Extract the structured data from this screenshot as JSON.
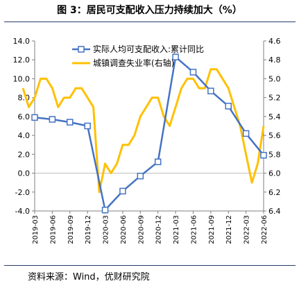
{
  "title": "图 3：居民可支配收入压力持续加大（%）",
  "source": "资料来源：Wind，优财研究院",
  "colors": {
    "income": "#4472c4",
    "unemp": "#ffc000",
    "axis": "#7f7f7f"
  },
  "chart_data": {
    "type": "line",
    "x": [
      "2019-03",
      "2019-06",
      "2019-09",
      "2019-12",
      "2020-03",
      "2020-06",
      "2020-09",
      "2020-12",
      "2021-03",
      "2021-06",
      "2021-09",
      "2021-12",
      "2022-03",
      "2022-06"
    ],
    "left_axis": {
      "ylim": [
        -4,
        14
      ],
      "ticks": [
        "-4.0",
        "-2.0",
        "0.0",
        "2.0",
        "4.0",
        "6.0",
        "8.0",
        "10.0",
        "12.0",
        "14.0"
      ]
    },
    "right_axis": {
      "ylim": [
        6.4,
        4.6
      ],
      "inverted": true,
      "ticks": [
        "4.6",
        "4.8",
        "5.0",
        "5.2",
        "5.4",
        "5.6",
        "5.8",
        "6.0",
        "6.2",
        "6.4"
      ]
    },
    "series": [
      {
        "name": "实际人均可支配收入:累计同比",
        "axis": "left",
        "marker": "square",
        "x": [
          "2019-03",
          "2019-06",
          "2019-09",
          "2019-12",
          "2020-03",
          "2020-06",
          "2020-09",
          "2020-12",
          "2021-03",
          "2021-06",
          "2021-09",
          "2021-12",
          "2022-03",
          "2022-06"
        ],
        "values": [
          5.9,
          5.7,
          5.4,
          5.0,
          -3.9,
          -1.9,
          -0.3,
          1.2,
          12.3,
          10.7,
          8.7,
          7.1,
          4.2,
          1.9
        ]
      },
      {
        "name": "城镇调查失业率(右轴)",
        "axis": "right",
        "x": [
          "2019-01",
          "2019-02",
          "2019-03",
          "2019-04",
          "2019-05",
          "2019-06",
          "2019-07",
          "2019-08",
          "2019-09",
          "2019-10",
          "2019-11",
          "2019-12",
          "2020-01",
          "2020-02",
          "2020-03",
          "2020-04",
          "2020-05",
          "2020-06",
          "2020-07",
          "2020-08",
          "2020-09",
          "2020-10",
          "2020-11",
          "2020-12",
          "2021-01",
          "2021-02",
          "2021-03",
          "2021-04",
          "2021-05",
          "2021-06",
          "2021-07",
          "2021-08",
          "2021-09",
          "2021-10",
          "2021-11",
          "2021-12",
          "2022-01",
          "2022-02",
          "2022-03",
          "2022-04",
          "2022-05",
          "2022-06"
        ],
        "values": [
          5.1,
          5.3,
          5.2,
          5.0,
          5.0,
          5.1,
          5.3,
          5.2,
          5.2,
          5.1,
          5.1,
          5.2,
          5.3,
          6.2,
          5.9,
          6.0,
          5.9,
          5.7,
          5.7,
          5.6,
          5.4,
          5.3,
          5.2,
          5.2,
          5.4,
          5.5,
          5.3,
          5.1,
          5.0,
          5.0,
          5.1,
          5.1,
          4.9,
          4.9,
          5.0,
          5.1,
          5.3,
          5.5,
          5.8,
          6.1,
          5.9,
          5.5
        ]
      }
    ]
  }
}
